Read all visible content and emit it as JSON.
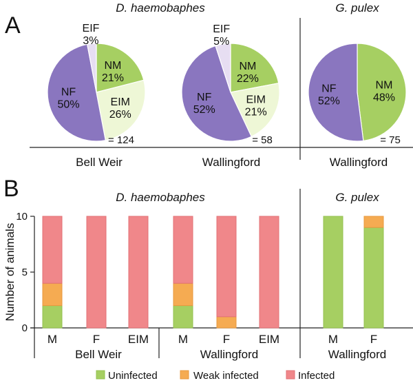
{
  "panel_a_label": "A",
  "panel_b_label": "B",
  "species_left": "D. haemobaphes",
  "species_right": "G. pulex",
  "colors": {
    "NM": "#a6cf62",
    "EIM": "#eef7d6",
    "EIF": "#e7def2",
    "NF": "#8a76bf",
    "uninfected": "#a6cf62",
    "weak": "#f5ab52",
    "infected": "#f0878a"
  },
  "chart_data": [
    {
      "type": "pie",
      "panel": "A",
      "site": "Bell Weir",
      "species": "D. haemobaphes",
      "n_label": "= 124",
      "slices": [
        {
          "category": "NM",
          "value": 21,
          "label": "21%"
        },
        {
          "category": "EIM",
          "value": 26,
          "label": "26%"
        },
        {
          "category": "NF",
          "value": 50,
          "label": "50%"
        },
        {
          "category": "EIF",
          "value": 3,
          "label": "3%"
        }
      ]
    },
    {
      "type": "pie",
      "panel": "A",
      "site": "Wallingford",
      "species": "D. haemobaphes",
      "n_label": "= 58",
      "slices": [
        {
          "category": "NM",
          "value": 22,
          "label": "22%"
        },
        {
          "category": "EIM",
          "value": 21,
          "label": "21%"
        },
        {
          "category": "NF",
          "value": 52,
          "label": "52%"
        },
        {
          "category": "EIF",
          "value": 5,
          "label": "5%"
        }
      ]
    },
    {
      "type": "pie",
      "panel": "A",
      "site": "Wallingford",
      "species": "G. pulex",
      "n_label": "= 75",
      "slices": [
        {
          "category": "NM",
          "value": 48,
          "label": "48%"
        },
        {
          "category": "NF",
          "value": 52,
          "label": "52%"
        }
      ]
    },
    {
      "type": "bar",
      "stacked": true,
      "panel": "B",
      "ylabel": "Number of animals",
      "ylim": [
        0,
        10
      ],
      "yticks": [
        0,
        5,
        10
      ],
      "groups": [
        {
          "site": "Bell Weir",
          "species": "D. haemobaphes",
          "categories": [
            "M",
            "F",
            "EIM"
          ]
        },
        {
          "site": "Wallingford",
          "species": "D. haemobaphes",
          "categories": [
            "M",
            "F",
            "EIM"
          ]
        },
        {
          "site": "Wallingford",
          "species": "G. pulex",
          "categories": [
            "M",
            "F"
          ]
        }
      ],
      "series": [
        {
          "name": "Uninfected",
          "values": [
            2,
            0,
            0,
            2,
            0,
            0,
            10,
            9
          ]
        },
        {
          "name": "Weak infected",
          "values": [
            2,
            0,
            0,
            2,
            1,
            0,
            0,
            1
          ]
        },
        {
          "name": "Infected",
          "values": [
            6,
            10,
            10,
            6,
            9,
            10,
            0,
            0
          ]
        }
      ]
    }
  ]
}
